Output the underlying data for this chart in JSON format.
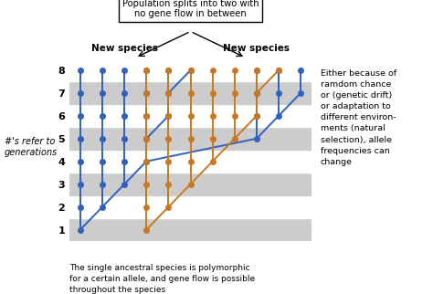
{
  "blue": "#3060c0",
  "orange": "#c87820",
  "bg_stripe": "#cccccc",
  "bg_white": "#ffffff",
  "n_generations": 8,
  "title_box": "Population splits into two with\nno gene flow in between",
  "label_new_species_left": "New species",
  "label_new_species_right": "New species",
  "label_left": "#'s refer to\ngenerations",
  "label_bottom": "The single ancestral species is polymorphic\nfor a certain allele, and gene flow is possible\nthroughout the species",
  "label_right": "Either because of\nramdom chance\nor (genetic drift)\nor adaptation to\ndifferent environ-\nments (natural\nselection), allele\nfrequencies can\nchange",
  "blue_connections": [
    [
      [
        1,
        1
      ],
      [
        1,
        2
      ]
    ],
    [
      [
        1,
        1
      ],
      [
        2,
        2
      ]
    ],
    [
      [
        1,
        2
      ],
      [
        1,
        3
      ]
    ],
    [
      [
        2,
        2
      ],
      [
        2,
        3
      ]
    ],
    [
      [
        2,
        2
      ],
      [
        3,
        3
      ]
    ],
    [
      [
        1,
        3
      ],
      [
        1,
        4
      ]
    ],
    [
      [
        2,
        3
      ],
      [
        2,
        4
      ]
    ],
    [
      [
        3,
        3
      ],
      [
        3,
        4
      ]
    ],
    [
      [
        3,
        3
      ],
      [
        4,
        4
      ]
    ],
    [
      [
        1,
        4
      ],
      [
        1,
        5
      ]
    ],
    [
      [
        2,
        4
      ],
      [
        2,
        5
      ]
    ],
    [
      [
        3,
        4
      ],
      [
        3,
        5
      ]
    ],
    [
      [
        4,
        4
      ],
      [
        4,
        5
      ]
    ],
    [
      [
        1,
        5
      ],
      [
        1,
        6
      ]
    ],
    [
      [
        2,
        5
      ],
      [
        2,
        6
      ]
    ],
    [
      [
        3,
        5
      ],
      [
        3,
        6
      ]
    ],
    [
      [
        4,
        5
      ],
      [
        4,
        6
      ]
    ],
    [
      [
        4,
        5
      ],
      [
        5,
        6
      ]
    ],
    [
      [
        1,
        6
      ],
      [
        1,
        7
      ]
    ],
    [
      [
        2,
        6
      ],
      [
        2,
        7
      ]
    ],
    [
      [
        3,
        6
      ],
      [
        3,
        7
      ]
    ],
    [
      [
        4,
        6
      ],
      [
        4,
        7
      ]
    ],
    [
      [
        5,
        6
      ],
      [
        5,
        7
      ]
    ],
    [
      [
        1,
        7
      ],
      [
        1,
        8
      ]
    ],
    [
      [
        2,
        7
      ],
      [
        2,
        8
      ]
    ],
    [
      [
        3,
        7
      ],
      [
        3,
        8
      ]
    ],
    [
      [
        4,
        7
      ],
      [
        4,
        8
      ]
    ],
    [
      [
        5,
        7
      ],
      [
        5,
        8
      ]
    ],
    [
      [
        5,
        7
      ],
      [
        6,
        8
      ]
    ],
    [
      [
        4,
        4
      ],
      [
        9,
        5
      ]
    ],
    [
      [
        9,
        5
      ],
      [
        9,
        6
      ]
    ],
    [
      [
        9,
        5
      ],
      [
        10,
        6
      ]
    ],
    [
      [
        9,
        6
      ],
      [
        9,
        7
      ]
    ],
    [
      [
        10,
        6
      ],
      [
        10,
        7
      ]
    ],
    [
      [
        10,
        6
      ],
      [
        11,
        7
      ]
    ],
    [
      [
        9,
        7
      ],
      [
        9,
        8
      ]
    ],
    [
      [
        10,
        7
      ],
      [
        10,
        8
      ]
    ],
    [
      [
        11,
        7
      ],
      [
        11,
        8
      ]
    ]
  ],
  "orange_connections": [
    [
      [
        4,
        1
      ],
      [
        4,
        2
      ]
    ],
    [
      [
        4,
        1
      ],
      [
        5,
        2
      ]
    ],
    [
      [
        4,
        2
      ],
      [
        4,
        3
      ]
    ],
    [
      [
        5,
        2
      ],
      [
        5,
        3
      ]
    ],
    [
      [
        5,
        2
      ],
      [
        6,
        3
      ]
    ],
    [
      [
        4,
        3
      ],
      [
        4,
        4
      ]
    ],
    [
      [
        5,
        3
      ],
      [
        5,
        4
      ]
    ],
    [
      [
        6,
        3
      ],
      [
        6,
        4
      ]
    ],
    [
      [
        6,
        3
      ],
      [
        7,
        4
      ]
    ],
    [
      [
        4,
        4
      ],
      [
        4,
        5
      ]
    ],
    [
      [
        5,
        4
      ],
      [
        5,
        5
      ]
    ],
    [
      [
        6,
        4
      ],
      [
        6,
        5
      ]
    ],
    [
      [
        7,
        4
      ],
      [
        7,
        5
      ]
    ],
    [
      [
        7,
        4
      ],
      [
        8,
        5
      ]
    ],
    [
      [
        4,
        5
      ],
      [
        4,
        6
      ]
    ],
    [
      [
        5,
        5
      ],
      [
        5,
        6
      ]
    ],
    [
      [
        6,
        5
      ],
      [
        6,
        6
      ]
    ],
    [
      [
        7,
        5
      ],
      [
        7,
        6
      ]
    ],
    [
      [
        8,
        5
      ],
      [
        8,
        6
      ]
    ],
    [
      [
        8,
        5
      ],
      [
        9,
        6
      ]
    ],
    [
      [
        4,
        6
      ],
      [
        4,
        7
      ]
    ],
    [
      [
        5,
        6
      ],
      [
        5,
        7
      ]
    ],
    [
      [
        6,
        6
      ],
      [
        6,
        7
      ]
    ],
    [
      [
        7,
        6
      ],
      [
        7,
        7
      ]
    ],
    [
      [
        8,
        6
      ],
      [
        8,
        7
      ]
    ],
    [
      [
        9,
        6
      ],
      [
        9,
        7
      ]
    ],
    [
      [
        4,
        7
      ],
      [
        4,
        8
      ]
    ],
    [
      [
        5,
        7
      ],
      [
        5,
        8
      ]
    ],
    [
      [
        6,
        7
      ],
      [
        6,
        8
      ]
    ],
    [
      [
        7,
        7
      ],
      [
        7,
        8
      ]
    ],
    [
      [
        8,
        7
      ],
      [
        8,
        8
      ]
    ],
    [
      [
        9,
        7
      ],
      [
        9,
        8
      ]
    ],
    [
      [
        9,
        7
      ],
      [
        10,
        8
      ]
    ]
  ],
  "blue_nodes": {
    "1": [
      1
    ],
    "2": [
      1,
      2
    ],
    "3": [
      1,
      2,
      3
    ],
    "4": [
      1,
      2,
      3,
      4
    ],
    "5": [
      1,
      2,
      3,
      4,
      9
    ],
    "6": [
      1,
      2,
      3,
      4,
      5,
      9,
      10
    ],
    "7": [
      1,
      2,
      3,
      4,
      5,
      9,
      10,
      11
    ],
    "8": [
      1,
      2,
      3,
      4,
      5,
      6,
      9,
      10,
      11
    ]
  },
  "orange_nodes": {
    "1": [
      4
    ],
    "2": [
      4,
      5
    ],
    "3": [
      4,
      5,
      6
    ],
    "4": [
      4,
      5,
      6,
      7
    ],
    "5": [
      4,
      5,
      6,
      7,
      8
    ],
    "6": [
      4,
      5,
      6,
      7,
      8,
      9
    ],
    "7": [
      4,
      5,
      6,
      7,
      8,
      9
    ],
    "8": [
      4,
      5,
      6,
      7,
      8,
      9,
      10
    ]
  }
}
